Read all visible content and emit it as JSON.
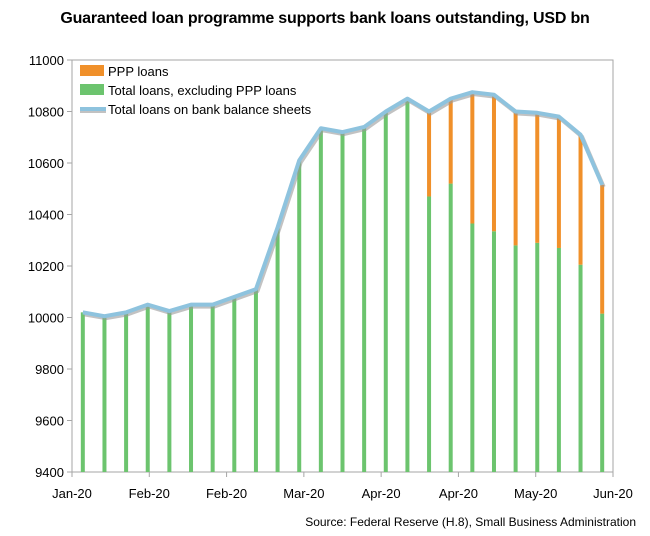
{
  "chart_data": {
    "type": "bar",
    "title": "Guaranteed loan programme supports bank loans outstanding, USD bn",
    "source": "Source: Federal Reserve (H.8), Small Business Administration",
    "xlabel": "",
    "ylabel": "",
    "ylim": [
      9400,
      11000
    ],
    "yticks": [
      9400,
      9600,
      9800,
      10000,
      10200,
      10400,
      10600,
      10800,
      11000
    ],
    "xtick_labels": [
      "Jan-20",
      "Feb-20",
      "Feb-20",
      "Mar-20",
      "Apr-20",
      "Apr-20",
      "May-20",
      "Jun-20"
    ],
    "grid": false,
    "legend_position": "top-left",
    "colors": {
      "ppp": "#F0902A",
      "excluding": "#6CC46E",
      "total": "#8EC3DE",
      "total_shadow": "#9A9A9A"
    },
    "series": [
      {
        "name": "PPP loans",
        "type": "bar",
        "values": [
          0,
          0,
          0,
          0,
          0,
          0,
          0,
          0,
          0,
          0,
          0,
          0,
          0,
          0,
          0,
          0,
          330,
          330,
          510,
          530,
          520,
          500,
          510,
          505,
          500
        ]
      },
      {
        "name": "Total loans, excluding PPP loans",
        "type": "bar",
        "values": [
          10020,
          10005,
          10020,
          10050,
          10025,
          10050,
          10050,
          10080,
          10110,
          10350,
          10610,
          10735,
          10720,
          10740,
          10800,
          10850,
          10470,
          10520,
          10365,
          10335,
          10280,
          10290,
          10270,
          10205,
          10015
        ]
      },
      {
        "name": "Total loans on bank balance sheets",
        "type": "line",
        "values": [
          10020,
          10005,
          10020,
          10050,
          10025,
          10050,
          10050,
          10080,
          10110,
          10350,
          10610,
          10735,
          10720,
          10740,
          10800,
          10850,
          10800,
          10850,
          10875,
          10865,
          10800,
          10795,
          10780,
          10710,
          10515
        ]
      }
    ]
  }
}
